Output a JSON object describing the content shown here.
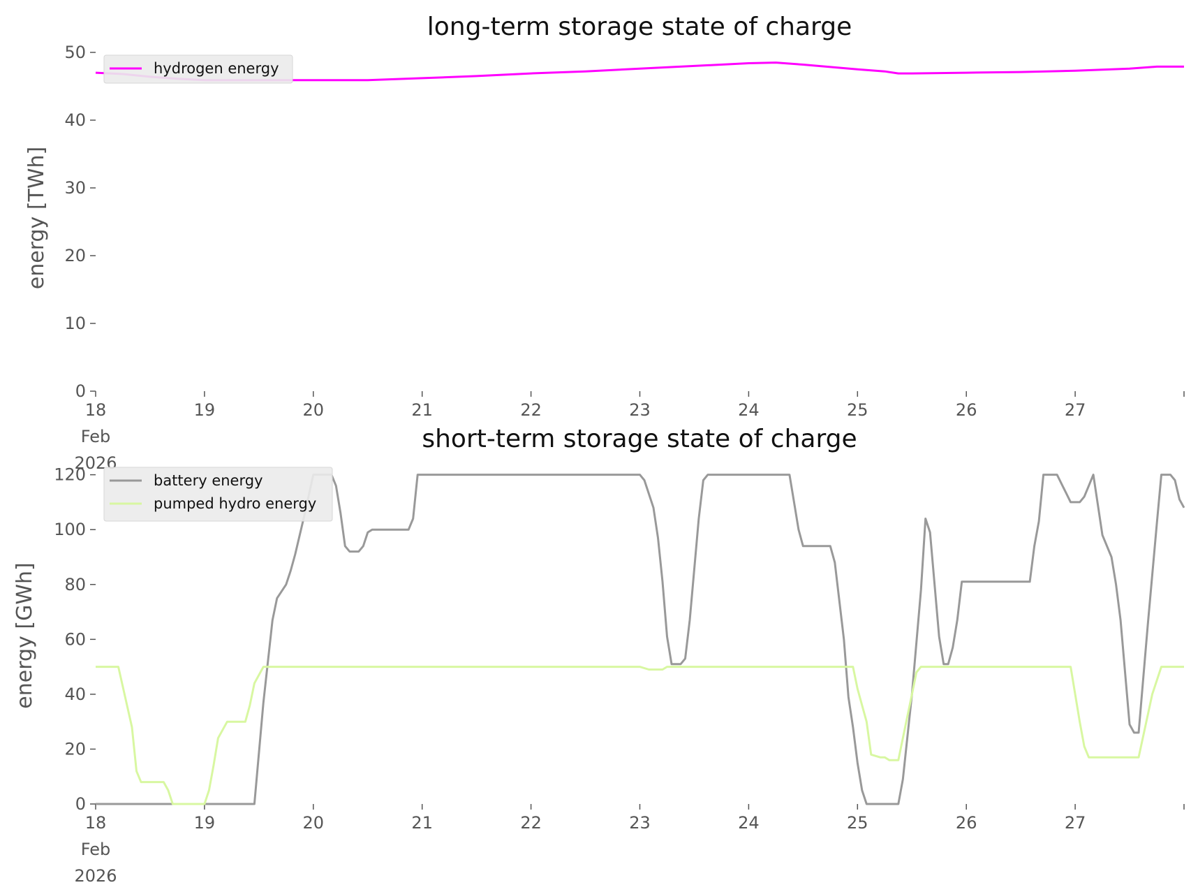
{
  "chart_data": [
    {
      "type": "line",
      "title": "long-term storage state of charge",
      "xlabel": "",
      "ylabel": "energy [TWh]",
      "ylim": [
        0,
        50
      ],
      "yticks": [
        0,
        10,
        20,
        30,
        40,
        50
      ],
      "x_range": [
        "2026-02-18",
        "2026-02-28"
      ],
      "x_tick_labels": [
        {
          "x": "2026-02-18",
          "lines": [
            "18",
            "Feb",
            "2026"
          ]
        },
        {
          "x": "2026-02-19",
          "lines": [
            "19"
          ]
        },
        {
          "x": "2026-02-20",
          "lines": [
            "20"
          ]
        },
        {
          "x": "2026-02-21",
          "lines": [
            "21"
          ]
        },
        {
          "x": "2026-02-22",
          "lines": [
            "22"
          ]
        },
        {
          "x": "2026-02-23",
          "lines": [
            "23"
          ]
        },
        {
          "x": "2026-02-24",
          "lines": [
            "24"
          ]
        },
        {
          "x": "2026-02-25",
          "lines": [
            "25"
          ]
        },
        {
          "x": "2026-02-26",
          "lines": [
            "26"
          ]
        },
        {
          "x": "2026-02-27",
          "lines": [
            "27"
          ]
        }
      ],
      "grid": false,
      "legend_position": "upper-left",
      "series": [
        {
          "name": "hydrogen energy",
          "color": "#ff00ff",
          "points": [
            [
              "2026-02-18T00:00",
              47.0
            ],
            [
              "2026-02-18T06:00",
              46.8
            ],
            [
              "2026-02-18T12:00",
              46.4
            ],
            [
              "2026-02-18T18:00",
              46.1
            ],
            [
              "2026-02-19T00:00",
              45.9
            ],
            [
              "2026-02-19T12:00",
              45.9
            ],
            [
              "2026-02-20T00:00",
              45.9
            ],
            [
              "2026-02-20T12:00",
              45.9
            ],
            [
              "2026-02-21T00:00",
              46.2
            ],
            [
              "2026-02-21T12:00",
              46.5
            ],
            [
              "2026-02-22T00:00",
              46.9
            ],
            [
              "2026-02-22T12:00",
              47.2
            ],
            [
              "2026-02-23T00:00",
              47.6
            ],
            [
              "2026-02-23T12:00",
              48.0
            ],
            [
              "2026-02-24T00:00",
              48.4
            ],
            [
              "2026-02-24T06:00",
              48.5
            ],
            [
              "2026-02-24T12:00",
              48.2
            ],
            [
              "2026-02-25T00:00",
              47.5
            ],
            [
              "2026-02-25T06:00",
              47.2
            ],
            [
              "2026-02-25T09:00",
              46.9
            ],
            [
              "2026-02-25T12:00",
              46.9
            ],
            [
              "2026-02-26T00:00",
              47.0
            ],
            [
              "2026-02-26T12:00",
              47.1
            ],
            [
              "2026-02-27T00:00",
              47.3
            ],
            [
              "2026-02-27T12:00",
              47.6
            ],
            [
              "2026-02-27T18:00",
              47.9
            ],
            [
              "2026-02-28T00:00",
              47.9
            ]
          ]
        }
      ]
    },
    {
      "type": "line",
      "title": "short-term storage state of charge",
      "xlabel": "",
      "ylabel": "energy [GWh]",
      "ylim": [
        0,
        125
      ],
      "yticks": [
        0,
        20,
        40,
        60,
        80,
        100,
        120
      ],
      "x_range": [
        "2026-02-18",
        "2026-02-28"
      ],
      "x_tick_labels": [
        {
          "x": "2026-02-18",
          "lines": [
            "18",
            "Feb",
            "2026"
          ]
        },
        {
          "x": "2026-02-19",
          "lines": [
            "19"
          ]
        },
        {
          "x": "2026-02-20",
          "lines": [
            "20"
          ]
        },
        {
          "x": "2026-02-21",
          "lines": [
            "21"
          ]
        },
        {
          "x": "2026-02-22",
          "lines": [
            "22"
          ]
        },
        {
          "x": "2026-02-23",
          "lines": [
            "23"
          ]
        },
        {
          "x": "2026-02-24",
          "lines": [
            "24"
          ]
        },
        {
          "x": "2026-02-25",
          "lines": [
            "25"
          ]
        },
        {
          "x": "2026-02-26",
          "lines": [
            "26"
          ]
        },
        {
          "x": "2026-02-27",
          "lines": [
            "27"
          ]
        }
      ],
      "grid": false,
      "legend_position": "upper-left",
      "series": [
        {
          "name": "battery energy",
          "color": "#999999",
          "points": [
            [
              "2026-02-18T00:00",
              0
            ],
            [
              "2026-02-19T11:00",
              0
            ],
            [
              "2026-02-19T13:00",
              37
            ],
            [
              "2026-02-19T15:00",
              67
            ],
            [
              "2026-02-19T16:00",
              75
            ],
            [
              "2026-02-19T18:00",
              80
            ],
            [
              "2026-02-19T19:00",
              85
            ],
            [
              "2026-02-19T20:00",
              91
            ],
            [
              "2026-02-19T22:00",
              105
            ],
            [
              "2026-02-20T00:00",
              120
            ],
            [
              "2026-02-20T04:00",
              120
            ],
            [
              "2026-02-20T05:00",
              116
            ],
            [
              "2026-02-20T06:00",
              106
            ],
            [
              "2026-02-20T07:00",
              94
            ],
            [
              "2026-02-20T08:00",
              92
            ],
            [
              "2026-02-20T10:00",
              92
            ],
            [
              "2026-02-20T11:00",
              94
            ],
            [
              "2026-02-20T12:00",
              99
            ],
            [
              "2026-02-20T13:00",
              100
            ],
            [
              "2026-02-20T21:00",
              100
            ],
            [
              "2026-02-20T22:00",
              104
            ],
            [
              "2026-02-20T23:00",
              120
            ],
            [
              "2026-02-23T00:00",
              120
            ],
            [
              "2026-02-23T01:00",
              118
            ],
            [
              "2026-02-23T02:00",
              113
            ],
            [
              "2026-02-23T03:00",
              108
            ],
            [
              "2026-02-23T04:00",
              97
            ],
            [
              "2026-02-23T05:00",
              81
            ],
            [
              "2026-02-23T06:00",
              61
            ],
            [
              "2026-02-23T07:00",
              51
            ],
            [
              "2026-02-23T09:00",
              51
            ],
            [
              "2026-02-23T10:00",
              53
            ],
            [
              "2026-02-23T11:00",
              67
            ],
            [
              "2026-02-23T13:00",
              104
            ],
            [
              "2026-02-23T14:00",
              118
            ],
            [
              "2026-02-23T15:00",
              120
            ],
            [
              "2026-02-24T09:00",
              120
            ],
            [
              "2026-02-24T10:00",
              110
            ],
            [
              "2026-02-24T11:00",
              100
            ],
            [
              "2026-02-24T12:00",
              94
            ],
            [
              "2026-02-24T18:00",
              94
            ],
            [
              "2026-02-24T19:00",
              88
            ],
            [
              "2026-02-24T21:00",
              60
            ],
            [
              "2026-02-24T22:00",
              39
            ],
            [
              "2026-02-24T23:00",
              28
            ],
            [
              "2026-02-25T00:00",
              15
            ],
            [
              "2026-02-25T01:00",
              5
            ],
            [
              "2026-02-25T02:00",
              0
            ],
            [
              "2026-02-25T09:00",
              0
            ],
            [
              "2026-02-25T10:00",
              9
            ],
            [
              "2026-02-25T12:00",
              40
            ],
            [
              "2026-02-25T14:00",
              78
            ],
            [
              "2026-02-25T15:00",
              104
            ],
            [
              "2026-02-25T16:00",
              99
            ],
            [
              "2026-02-25T17:00",
              80
            ],
            [
              "2026-02-25T18:00",
              61
            ],
            [
              "2026-02-25T19:00",
              51
            ],
            [
              "2026-02-25T20:00",
              51
            ],
            [
              "2026-02-25T21:00",
              57
            ],
            [
              "2026-02-25T22:00",
              67
            ],
            [
              "2026-02-25T23:00",
              81
            ],
            [
              "2026-02-26T14:00",
              81
            ],
            [
              "2026-02-26T15:00",
              94
            ],
            [
              "2026-02-26T16:00",
              103
            ],
            [
              "2026-02-26T17:00",
              120
            ],
            [
              "2026-02-26T20:00",
              120
            ],
            [
              "2026-02-26T23:00",
              110
            ],
            [
              "2026-02-27T01:00",
              110
            ],
            [
              "2026-02-27T02:00",
              112
            ],
            [
              "2026-02-27T03:00",
              116
            ],
            [
              "2026-02-27T04:00",
              120
            ],
            [
              "2026-02-27T05:00",
              109
            ],
            [
              "2026-02-27T06:00",
              98
            ],
            [
              "2026-02-27T08:00",
              90
            ],
            [
              "2026-02-27T09:00",
              80
            ],
            [
              "2026-02-27T10:00",
              67
            ],
            [
              "2026-02-27T12:00",
              29
            ],
            [
              "2026-02-27T13:00",
              26
            ],
            [
              "2026-02-27T14:00",
              26
            ],
            [
              "2026-02-27T16:00",
              65
            ],
            [
              "2026-02-27T18:00",
              102
            ],
            [
              "2026-02-27T19:00",
              120
            ],
            [
              "2026-02-27T21:00",
              120
            ],
            [
              "2026-02-27T22:00",
              118
            ],
            [
              "2026-02-27T23:00",
              111
            ],
            [
              "2026-02-28T00:00",
              108
            ]
          ]
        },
        {
          "name": "pumped hydro energy",
          "color": "#d8f7a1",
          "points": [
            [
              "2026-02-18T00:00",
              50
            ],
            [
              "2026-02-18T05:00",
              50
            ],
            [
              "2026-02-18T08:00",
              28
            ],
            [
              "2026-02-18T09:00",
              12
            ],
            [
              "2026-02-18T10:00",
              8
            ],
            [
              "2026-02-18T15:00",
              8
            ],
            [
              "2026-02-18T16:00",
              5
            ],
            [
              "2026-02-18T17:00",
              0
            ],
            [
              "2026-02-19T00:00",
              0
            ],
            [
              "2026-02-19T01:00",
              5
            ],
            [
              "2026-02-19T02:00",
              14
            ],
            [
              "2026-02-19T03:00",
              24
            ],
            [
              "2026-02-19T05:00",
              30
            ],
            [
              "2026-02-19T09:00",
              30
            ],
            [
              "2026-02-19T10:00",
              36
            ],
            [
              "2026-02-19T11:00",
              44
            ],
            [
              "2026-02-19T13:00",
              50
            ],
            [
              "2026-02-23T00:00",
              50
            ],
            [
              "2026-02-23T02:00",
              49
            ],
            [
              "2026-02-23T05:00",
              49
            ],
            [
              "2026-02-23T06:00",
              50
            ],
            [
              "2026-02-24T23:00",
              50
            ],
            [
              "2026-02-25T00:00",
              42
            ],
            [
              "2026-02-25T02:00",
              30
            ],
            [
              "2026-02-25T03:00",
              18
            ],
            [
              "2026-02-25T05:00",
              17
            ],
            [
              "2026-02-25T06:00",
              17
            ],
            [
              "2026-02-25T07:00",
              16
            ],
            [
              "2026-02-25T09:00",
              16
            ],
            [
              "2026-02-25T10:00",
              24
            ],
            [
              "2026-02-25T12:00",
              40
            ],
            [
              "2026-02-25T13:00",
              48
            ],
            [
              "2026-02-25T14:00",
              50
            ],
            [
              "2026-02-26T23:00",
              50
            ],
            [
              "2026-02-27T01:00",
              30
            ],
            [
              "2026-02-27T02:00",
              21
            ],
            [
              "2026-02-27T03:00",
              17
            ],
            [
              "2026-02-27T14:00",
              17
            ],
            [
              "2026-02-27T17:00",
              40
            ],
            [
              "2026-02-27T19:00",
              50
            ],
            [
              "2026-02-28T00:00",
              50
            ]
          ]
        }
      ]
    }
  ]
}
